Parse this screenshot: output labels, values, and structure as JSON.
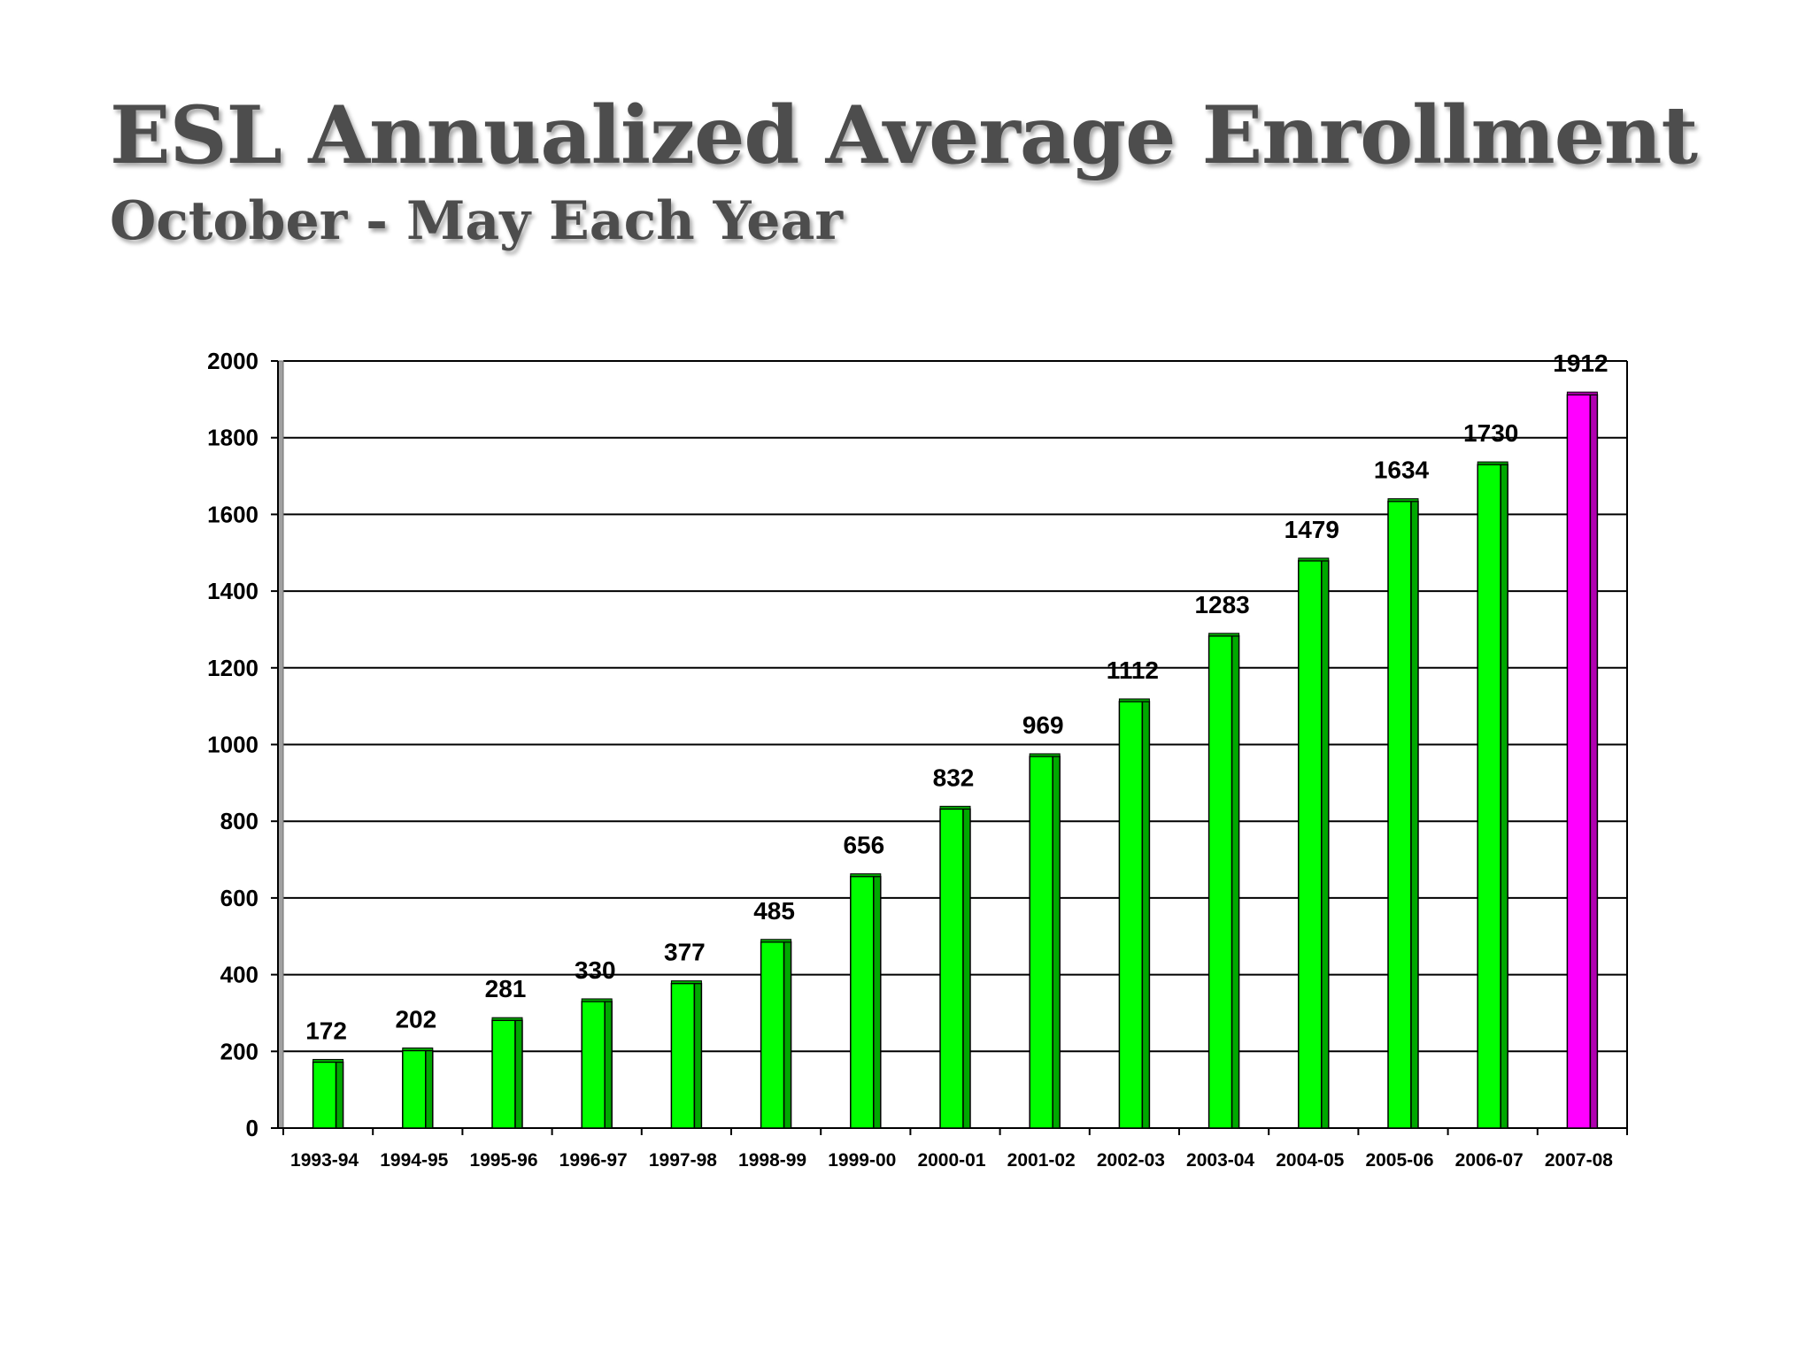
{
  "chart_data": {
    "type": "bar",
    "title": "ESL Annualized Average Enrollment",
    "subtitle": "October - May Each Year",
    "categories": [
      "1993-94",
      "1994-95",
      "1995-96",
      "1996-97",
      "1997-98",
      "1998-99",
      "1999-00",
      "2000-01",
      "2001-02",
      "2002-03",
      "2003-04",
      "2004-05",
      "2005-06",
      "2006-07",
      "2007-08"
    ],
    "values": [
      172,
      202,
      281,
      330,
      377,
      485,
      656,
      832,
      969,
      1112,
      1283,
      1479,
      1634,
      1730,
      1912
    ],
    "value_labels": [
      "172",
      "202",
      "281",
      "330",
      "377",
      "485",
      "656",
      "832",
      "969",
      "1112",
      "1283",
      "1479",
      "1634",
      "1730",
      "1912"
    ],
    "ylim": [
      0,
      2000
    ],
    "yticks": [
      0,
      200,
      400,
      600,
      800,
      1000,
      1200,
      1400,
      1600,
      1800,
      2000
    ],
    "ytick_labels": [
      "0",
      "200",
      "400",
      "600",
      "800",
      "1000",
      "1200",
      "1400",
      "1600",
      "1800",
      "2000"
    ],
    "xlabel": "",
    "ylabel": "",
    "grid": true,
    "colors": {
      "bar": "#00ff00",
      "bar_side": "#00a800",
      "highlight": "#ff00ff",
      "highlight_side": "#b000b0",
      "grid": "#000000"
    },
    "highlight_index": 14
  }
}
